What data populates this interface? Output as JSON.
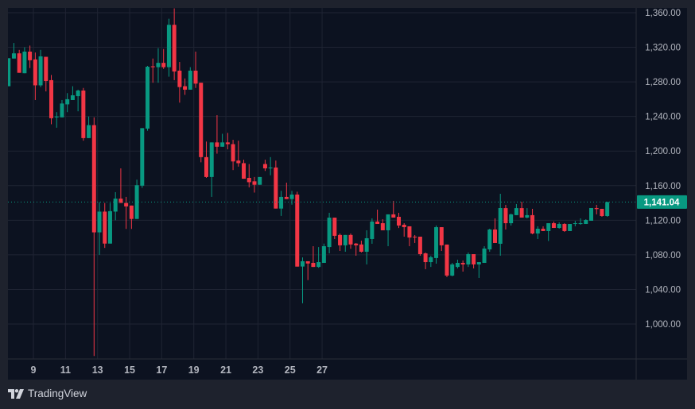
{
  "branding": {
    "name": "TradingView",
    "logo_icon": "tradingview-logo-icon"
  },
  "colors": {
    "up": "#089981",
    "down": "#f23645",
    "background": "#0c1220",
    "grid": "#1f2433",
    "axis_text": "#b2b5be",
    "frame": "#1e222d"
  },
  "chart_data": {
    "type": "candlestick",
    "interval_days": 0.3333,
    "first_candle_day": 7.45,
    "ylim": [
      960,
      1368
    ],
    "y_ticks": [
      1000,
      1040,
      1080,
      1120,
      1160,
      1200,
      1240,
      1280,
      1320,
      1360
    ],
    "y_tick_labels": [
      "1,000.00",
      "1,040.00",
      "1,080.00",
      "1,120.00",
      "1,160.00",
      "1,200.00",
      "1,240.00",
      "1,280.00",
      "1,320.00",
      "1,360.00"
    ],
    "x_ticks": [
      9,
      11,
      13,
      15,
      17,
      19,
      21,
      23,
      25,
      27
    ],
    "x_tick_labels": [
      "9",
      "11",
      "13",
      "15",
      "17",
      "19",
      "21",
      "23",
      "25",
      "27"
    ],
    "last_price": 1141.04,
    "last_price_label": "1,141.04",
    "grid": true,
    "candles_ohlc": [
      [
        1275,
        1307,
        1275,
        1307.4
      ],
      [
        1307,
        1325,
        1307,
        1313
      ],
      [
        1313,
        1317,
        1290.5,
        1290.5
      ],
      [
        1290,
        1320,
        1290,
        1315
      ],
      [
        1315,
        1322,
        1296,
        1305
      ],
      [
        1306,
        1314,
        1259,
        1276
      ],
      [
        1276,
        1317,
        1274,
        1309.5
      ],
      [
        1309,
        1309,
        1269,
        1281
      ],
      [
        1282,
        1288,
        1231,
        1238
      ],
      [
        1239,
        1245,
        1227,
        1240
      ],
      [
        1239,
        1259,
        1239,
        1255
      ],
      [
        1254,
        1267,
        1245,
        1260
      ],
      [
        1259,
        1275,
        1259,
        1264.5
      ],
      [
        1263.5,
        1271,
        1246,
        1270
      ],
      [
        1270,
        1273,
        1212,
        1215
      ],
      [
        1215,
        1240,
        1215,
        1230
      ],
      [
        1230,
        1239,
        963,
        1106
      ],
      [
        1106,
        1141,
        1080,
        1130
      ],
      [
        1130,
        1140,
        1088,
        1093
      ],
      [
        1093,
        1140,
        1093,
        1130.5
      ],
      [
        1130,
        1152.5,
        1120,
        1145
      ],
      [
        1145,
        1180,
        1140,
        1140
      ],
      [
        1140,
        1147,
        1110,
        1136
      ],
      [
        1137,
        1137,
        1110,
        1121.5
      ],
      [
        1121.5,
        1167,
        1121.5,
        1160.5
      ],
      [
        1160,
        1226.5,
        1157.5,
        1226.5
      ],
      [
        1226,
        1298.5,
        1223.5,
        1297.5
      ],
      [
        1298,
        1307,
        1279,
        1297
      ],
      [
        1297,
        1319,
        1279,
        1302
      ],
      [
        1302,
        1318,
        1295,
        1297
      ],
      [
        1297,
        1353,
        1286,
        1346
      ],
      [
        1346,
        1365,
        1282,
        1292
      ],
      [
        1293,
        1303,
        1256,
        1274
      ],
      [
        1275,
        1284,
        1265,
        1271
      ],
      [
        1271,
        1297,
        1271,
        1293
      ],
      [
        1293,
        1315,
        1273,
        1278
      ],
      [
        1279,
        1279,
        1187,
        1193
      ],
      [
        1193,
        1211,
        1169,
        1170
      ],
      [
        1170,
        1210,
        1147,
        1210
      ],
      [
        1210,
        1241.5,
        1197,
        1205
      ],
      [
        1205,
        1220,
        1205,
        1210
      ],
      [
        1210,
        1221,
        1202,
        1208
      ],
      [
        1208,
        1213,
        1178,
        1188
      ],
      [
        1189,
        1212,
        1182,
        1186
      ],
      [
        1186,
        1190,
        1168,
        1168
      ],
      [
        1169,
        1185,
        1158,
        1164
      ],
      [
        1165,
        1170,
        1152,
        1161
      ],
      [
        1161,
        1170,
        1161,
        1170
      ],
      [
        1185,
        1190,
        1177,
        1180
      ],
      [
        1180,
        1193,
        1172,
        1181
      ],
      [
        1181,
        1189,
        1133.5,
        1133.5
      ],
      [
        1133.5,
        1154,
        1125,
        1147
      ],
      [
        1147,
        1163.5,
        1144.5,
        1144.5
      ],
      [
        1144.5,
        1154,
        1138,
        1149.7
      ],
      [
        1149.7,
        1153,
        1066.4,
        1066.4
      ],
      [
        1066.5,
        1077,
        1024,
        1072.6
      ],
      [
        1072.6,
        1072.6,
        1050.8,
        1070
      ],
      [
        1070.7,
        1090,
        1066,
        1066
      ],
      [
        1066,
        1089,
        1065,
        1071.6
      ],
      [
        1070.7,
        1093,
        1070.7,
        1090
      ],
      [
        1089,
        1128.6,
        1081.7,
        1123
      ],
      [
        1123,
        1123,
        1098.3,
        1102
      ],
      [
        1103,
        1104.7,
        1084.5,
        1091
      ],
      [
        1091,
        1103,
        1083.6,
        1103
      ],
      [
        1103,
        1104.7,
        1087,
        1092
      ],
      [
        1093,
        1093.7,
        1079,
        1091
      ],
      [
        1092,
        1096.4,
        1082.7,
        1083.6
      ],
      [
        1083.6,
        1108.4,
        1068.9,
        1099.2
      ],
      [
        1098.3,
        1122.2,
        1092.8,
        1118.5
      ],
      [
        1118.5,
        1132.3,
        1115.7,
        1115.7
      ],
      [
        1116.6,
        1121.2,
        1108.4,
        1108.4
      ],
      [
        1108.4,
        1126.8,
        1090,
        1126.8
      ],
      [
        1126.8,
        1142.4,
        1123.1,
        1123.1
      ],
      [
        1124,
        1128.6,
        1111,
        1113.9
      ],
      [
        1114.8,
        1116.6,
        1101,
        1112
      ],
      [
        1113,
        1113,
        1090,
        1100
      ],
      [
        1101,
        1102.9,
        1093.7,
        1100.5
      ],
      [
        1101,
        1101,
        1079,
        1080.8
      ],
      [
        1081.7,
        1082.7,
        1063.4,
        1071.6
      ],
      [
        1071.6,
        1079,
        1066,
        1077.2
      ],
      [
        1076.3,
        1113.9,
        1069.8,
        1112
      ],
      [
        1112,
        1112,
        1084.5,
        1091
      ],
      [
        1091.9,
        1091.9,
        1054.2,
        1056
      ],
      [
        1056,
        1070.7,
        1055.1,
        1068.9
      ],
      [
        1066,
        1074.4,
        1064.3,
        1070.7
      ],
      [
        1070.7,
        1073.5,
        1060.6,
        1068.9
      ],
      [
        1068.9,
        1082.7,
        1066,
        1080.8
      ],
      [
        1080.8,
        1080.8,
        1064.3,
        1068.9
      ],
      [
        1068.9,
        1071.6,
        1053.3,
        1071.6
      ],
      [
        1070.7,
        1090,
        1070.7,
        1087.3
      ],
      [
        1086.3,
        1110.2,
        1083.6,
        1109.3
      ],
      [
        1109.3,
        1122.2,
        1093.7,
        1093.7
      ],
      [
        1092.8,
        1150.6,
        1079,
        1134.1
      ],
      [
        1134,
        1137.8,
        1109.3,
        1116.6
      ],
      [
        1116.6,
        1127.7,
        1113.9,
        1126.8
      ],
      [
        1125.9,
        1138.7,
        1125.9,
        1134
      ],
      [
        1134,
        1141.4,
        1123.1,
        1123.1
      ],
      [
        1123.1,
        1134,
        1122.2,
        1125.9
      ],
      [
        1125.9,
        1133.2,
        1103.8,
        1104.7
      ],
      [
        1104.7,
        1113,
        1098.3,
        1110.2
      ],
      [
        1110.2,
        1113,
        1107.5,
        1107.5
      ],
      [
        1107.5,
        1116.6,
        1096,
        1116.6
      ],
      [
        1116.6,
        1118.5,
        1111.1,
        1111.1
      ],
      [
        1111.1,
        1117.6,
        1110.2,
        1115.7
      ],
      [
        1115.7,
        1116.6,
        1106.5,
        1107.5
      ],
      [
        1107.5,
        1115.7,
        1107.5,
        1115.7
      ],
      [
        1116,
        1119.4,
        1113,
        1116.6
      ],
      [
        1116,
        1122.2,
        1114.8,
        1116.6
      ],
      [
        1115.7,
        1121.2,
        1115.7,
        1120.3
      ],
      [
        1119.4,
        1134.1,
        1119.4,
        1134.1
      ],
      [
        1134,
        1137.8,
        1126.8,
        1132.9
      ],
      [
        1133.2,
        1133.2,
        1124,
        1124.9
      ],
      [
        1124.9,
        1141.4,
        1124,
        1141.04
      ]
    ]
  }
}
